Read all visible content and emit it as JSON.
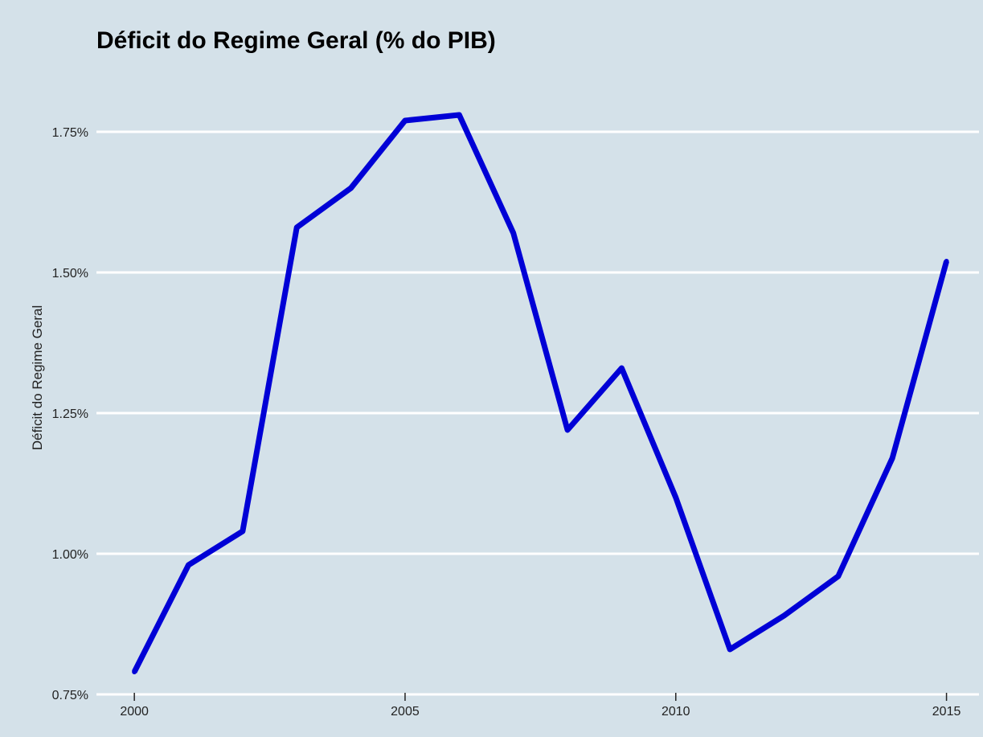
{
  "chart_data": {
    "type": "line",
    "title": "Déficit do Regime Geral (% do PIB)",
    "xlabel": "",
    "ylabel": "Déficit do Regime Geral",
    "x": [
      2000,
      2001,
      2002,
      2003,
      2004,
      2005,
      2006,
      2007,
      2008,
      2009,
      2010,
      2011,
      2012,
      2013,
      2014,
      2015
    ],
    "series": [
      {
        "values": [
          0.79,
          0.98,
          1.04,
          1.58,
          1.65,
          1.77,
          1.78,
          1.57,
          1.22,
          1.33,
          1.1,
          0.83,
          0.89,
          0.96,
          1.17,
          1.52
        ]
      }
    ],
    "xlim": [
      1999.3,
      2015.6
    ],
    "ylim": [
      0.75,
      1.85
    ],
    "x_ticks": [
      2000,
      2005,
      2010,
      2015
    ],
    "x_tick_labels": [
      "2000",
      "2005",
      "2010",
      "2015"
    ],
    "y_ticks": [
      0.75,
      1.0,
      1.25,
      1.5,
      1.75
    ],
    "y_tick_labels": [
      "0.75%",
      "1.00%",
      "1.25%",
      "1.50%",
      "1.75%"
    ],
    "grid": true,
    "legend": "none",
    "colors": {
      "panel_background": "#d4e1e9",
      "gridline": "#ffffff",
      "line": "#0000d6"
    }
  }
}
